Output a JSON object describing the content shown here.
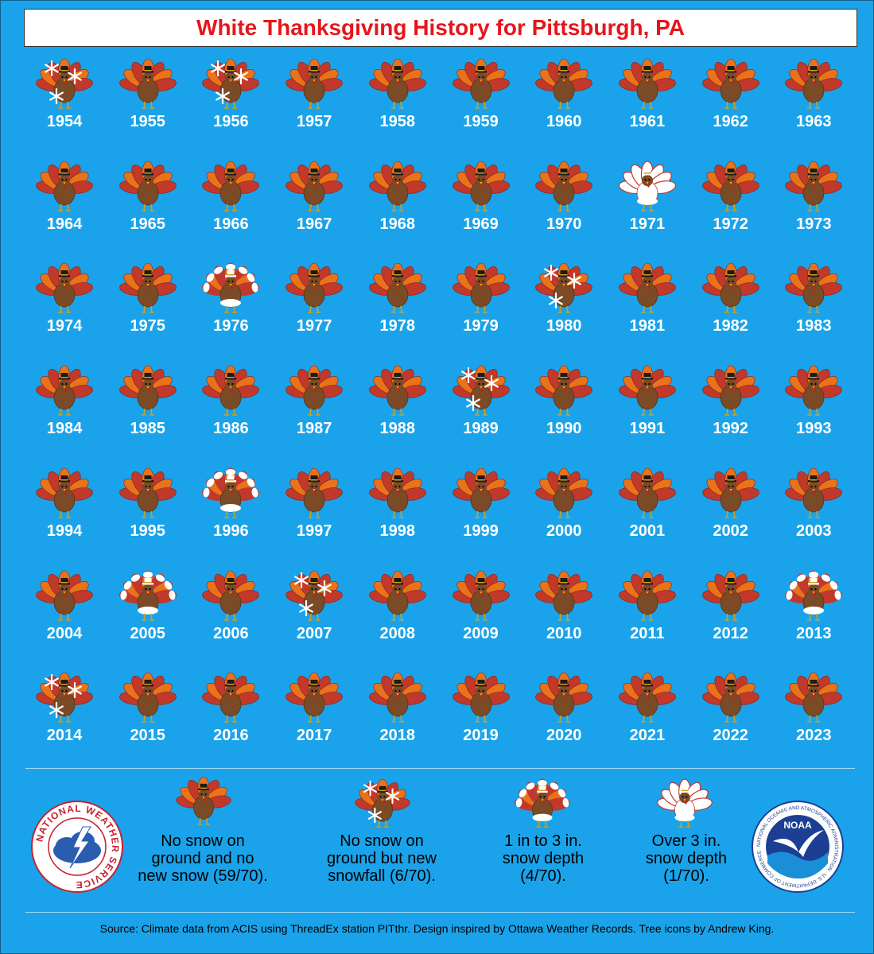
{
  "title": "White Thanksgiving History for Pittsburgh, PA",
  "colors": {
    "background": "#1aa3ea",
    "title_text": "#e8141b",
    "turkey_body": "#7b4a26",
    "turkey_feather_a": "#c0392b",
    "turkey_feather_b": "#e9731a",
    "snow": "#ffffff"
  },
  "chart_data": {
    "type": "table",
    "categories": {
      "none": "No snow on ground and no new snow",
      "new_snow": "No snow on ground but new snowfall",
      "depth_1_3": "1 in to 3 in. snow depth",
      "depth_over_3": "Over 3 in. snow depth"
    },
    "years": [
      {
        "year": "1954",
        "category": "new_snow"
      },
      {
        "year": "1955",
        "category": "none"
      },
      {
        "year": "1956",
        "category": "new_snow"
      },
      {
        "year": "1957",
        "category": "none"
      },
      {
        "year": "1958",
        "category": "none"
      },
      {
        "year": "1959",
        "category": "none"
      },
      {
        "year": "1960",
        "category": "none"
      },
      {
        "year": "1961",
        "category": "none"
      },
      {
        "year": "1962",
        "category": "none"
      },
      {
        "year": "1963",
        "category": "none"
      },
      {
        "year": "1964",
        "category": "none"
      },
      {
        "year": "1965",
        "category": "none"
      },
      {
        "year": "1966",
        "category": "none"
      },
      {
        "year": "1967",
        "category": "none"
      },
      {
        "year": "1968",
        "category": "none"
      },
      {
        "year": "1969",
        "category": "none"
      },
      {
        "year": "1970",
        "category": "none"
      },
      {
        "year": "1971",
        "category": "depth_over_3"
      },
      {
        "year": "1972",
        "category": "none"
      },
      {
        "year": "1973",
        "category": "none"
      },
      {
        "year": "1974",
        "category": "none"
      },
      {
        "year": "1975",
        "category": "none"
      },
      {
        "year": "1976",
        "category": "depth_1_3"
      },
      {
        "year": "1977",
        "category": "none"
      },
      {
        "year": "1978",
        "category": "none"
      },
      {
        "year": "1979",
        "category": "none"
      },
      {
        "year": "1980",
        "category": "new_snow"
      },
      {
        "year": "1981",
        "category": "none"
      },
      {
        "year": "1982",
        "category": "none"
      },
      {
        "year": "1983",
        "category": "none"
      },
      {
        "year": "1984",
        "category": "none"
      },
      {
        "year": "1985",
        "category": "none"
      },
      {
        "year": "1986",
        "category": "none"
      },
      {
        "year": "1987",
        "category": "none"
      },
      {
        "year": "1988",
        "category": "none"
      },
      {
        "year": "1989",
        "category": "new_snow"
      },
      {
        "year": "1990",
        "category": "none"
      },
      {
        "year": "1991",
        "category": "none"
      },
      {
        "year": "1992",
        "category": "none"
      },
      {
        "year": "1993",
        "category": "none"
      },
      {
        "year": "1994",
        "category": "none"
      },
      {
        "year": "1995",
        "category": "none"
      },
      {
        "year": "1996",
        "category": "depth_1_3"
      },
      {
        "year": "1997",
        "category": "none"
      },
      {
        "year": "1998",
        "category": "none"
      },
      {
        "year": "1999",
        "category": "none"
      },
      {
        "year": "2000",
        "category": "none"
      },
      {
        "year": "2001",
        "category": "none"
      },
      {
        "year": "2002",
        "category": "none"
      },
      {
        "year": "2003",
        "category": "none"
      },
      {
        "year": "2004",
        "category": "none"
      },
      {
        "year": "2005",
        "category": "depth_1_3"
      },
      {
        "year": "2006",
        "category": "none"
      },
      {
        "year": "2007",
        "category": "new_snow"
      },
      {
        "year": "2008",
        "category": "none"
      },
      {
        "year": "2009",
        "category": "none"
      },
      {
        "year": "2010",
        "category": "none"
      },
      {
        "year": "2011",
        "category": "none"
      },
      {
        "year": "2012",
        "category": "none"
      },
      {
        "year": "2013",
        "category": "depth_1_3"
      },
      {
        "year": "2014",
        "category": "new_snow"
      },
      {
        "year": "2015",
        "category": "none"
      },
      {
        "year": "2016",
        "category": "none"
      },
      {
        "year": "2017",
        "category": "none"
      },
      {
        "year": "2018",
        "category": "none"
      },
      {
        "year": "2019",
        "category": "none"
      },
      {
        "year": "2020",
        "category": "none"
      },
      {
        "year": "2021",
        "category": "none"
      },
      {
        "year": "2022",
        "category": "none"
      },
      {
        "year": "2023",
        "category": "none"
      }
    ]
  },
  "legend": [
    {
      "category": "none",
      "text": "No snow on\nground and no\nnew snow (59/70)."
    },
    {
      "category": "new_snow",
      "text": "No snow on\nground but new\nsnowfall (6/70)."
    },
    {
      "category": "depth_1_3",
      "text": "1 in to 3 in.\nsnow depth\n(4/70)."
    },
    {
      "category": "depth_over_3",
      "text": "Over 3 in.\nsnow depth\n(1/70)."
    }
  ],
  "logos": {
    "nws_text": "NATIONAL WEATHER SERVICE",
    "noaa_center": "NOAA",
    "noaa_ring": "NATIONAL OCEANIC AND ATMOSPHERIC ADMINISTRATION · U.S. DEPARTMENT OF COMMERCE"
  },
  "source": "Source: Climate data from ACIS using ThreadEx station PITthr. Design inspired by Ottawa Weather Records. Tree icons by Andrew King."
}
